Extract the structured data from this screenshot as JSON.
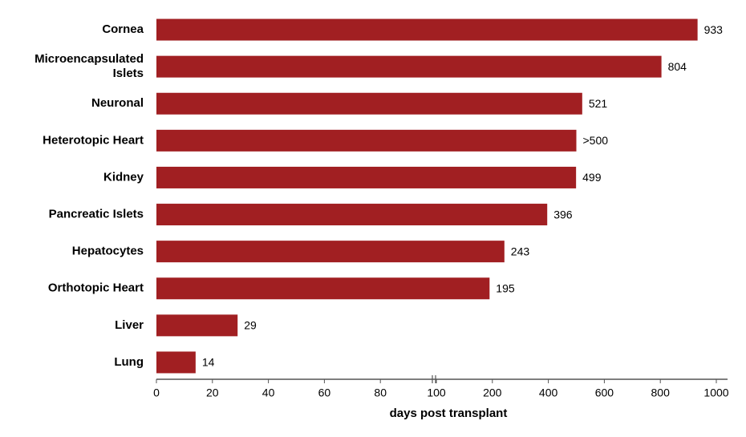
{
  "chart_data": {
    "type": "bar",
    "orientation": "horizontal",
    "categories": [
      "Cornea",
      "Microencapsulated\nIslets",
      "Neuronal",
      "Heterotopic Heart",
      "Kidney",
      "Pancreatic Islets",
      "Hepatocytes",
      "Orthotopic Heart",
      "Liver",
      "Lung"
    ],
    "values": [
      933,
      804,
      521,
      500,
      499,
      396,
      243,
      195,
      29,
      14
    ],
    "value_labels": [
      "933",
      "804",
      "521",
      ">500",
      "499",
      "396",
      "243",
      "195",
      "29",
      "14"
    ],
    "color": "#a11f22",
    "xlabel": "days post transplant",
    "xlim": [
      0,
      1000
    ],
    "xticks": [
      0,
      20,
      40,
      60,
      80,
      100,
      200,
      400,
      600,
      800,
      1000
    ]
  }
}
